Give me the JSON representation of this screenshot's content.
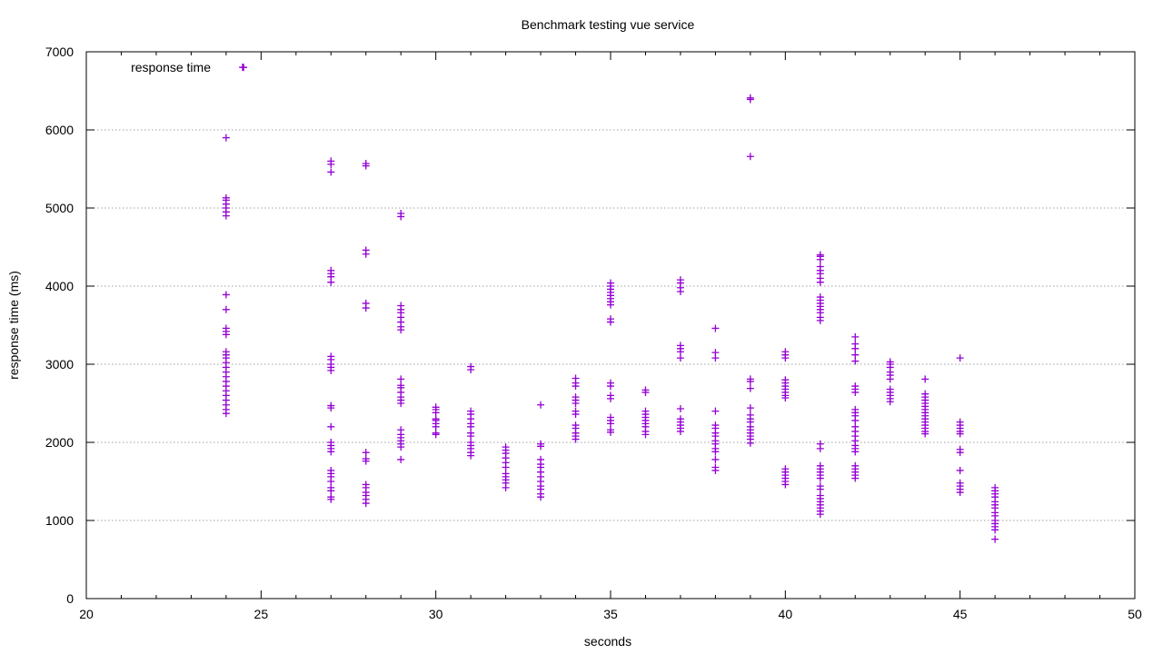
{
  "chart_data": {
    "type": "scatter",
    "title": "Benchmark testing vue service",
    "xlabel": "seconds",
    "ylabel": "response time (ms)",
    "xlim": [
      20,
      50
    ],
    "ylim": [
      0,
      7000
    ],
    "x_ticks": [
      20,
      25,
      30,
      35,
      40,
      45,
      50
    ],
    "y_ticks": [
      0,
      1000,
      2000,
      3000,
      4000,
      5000,
      6000,
      7000
    ],
    "grid": true,
    "legend_position": "top-left",
    "marker": "plus",
    "series": [
      {
        "name": "response time",
        "color": "#9400d3",
        "clusters": [
          {
            "x": 24,
            "y": [
              2370,
              2420,
              2480,
              2540,
              2600,
              2660,
              2720,
              2780,
              2840,
              2900,
              2960,
              3020,
              3080,
              3120,
              3160,
              3380,
              3420,
              3460,
              3700,
              3890,
              4900,
              4950,
              5000,
              5050,
              5100,
              5130,
              5900
            ]
          },
          {
            "x": 27,
            "y": [
              1270,
              1300,
              1380,
              1420,
              1500,
              1560,
              1600,
              1640,
              1880,
              1920,
              1960,
              2000,
              2200,
              2440,
              2470,
              2920,
              2960,
              3000,
              3060,
              3100,
              4050,
              4120,
              4160,
              4200,
              5460,
              5560,
              5600
            ]
          },
          {
            "x": 28,
            "y": [
              1220,
              1270,
              1320,
              1360,
              1420,
              1460,
              1760,
              1790,
              1870,
              3720,
              3780,
              4410,
              4460,
              5540,
              5570
            ]
          },
          {
            "x": 29,
            "y": [
              1780,
              1940,
              1980,
              2020,
              2060,
              2100,
              2160,
              2500,
              2540,
              2580,
              2640,
              2700,
              2730,
              2810,
              3440,
              3480,
              3540,
              3600,
              3660,
              3700,
              3750,
              4890,
              4930
            ]
          },
          {
            "x": 30,
            "y": [
              2100,
              2120,
              2200,
              2240,
              2280,
              2300,
              2380,
              2420,
              2450
            ]
          },
          {
            "x": 31,
            "y": [
              1830,
              1870,
              1920,
              1960,
              2000,
              2080,
              2120,
              2200,
              2240,
              2300,
              2360,
              2400,
              2930,
              2970
            ]
          },
          {
            "x": 32,
            "y": [
              1420,
              1480,
              1520,
              1560,
              1600,
              1680,
              1740,
              1800,
              1860,
              1900,
              1940
            ]
          },
          {
            "x": 33,
            "y": [
              1300,
              1340,
              1400,
              1440,
              1500,
              1560,
              1620,
              1680,
              1720,
              1780,
              1950,
              1980,
              2480
            ]
          },
          {
            "x": 34,
            "y": [
              2040,
              2080,
              2120,
              2180,
              2220,
              2360,
              2400,
              2500,
              2540,
              2580,
              2720,
              2760,
              2820
            ]
          },
          {
            "x": 35,
            "y": [
              2130,
              2160,
              2240,
              2280,
              2320,
              2560,
              2600,
              2720,
              2760,
              3540,
              3580,
              3760,
              3800,
              3840,
              3880,
              3920,
              3960,
              4000,
              4040
            ]
          },
          {
            "x": 36,
            "y": [
              2100,
              2140,
              2200,
              2240,
              2280,
              2320,
              2360,
              2400,
              2640,
              2670
            ]
          },
          {
            "x": 37,
            "y": [
              2140,
              2180,
              2220,
              2260,
              2300,
              2430,
              3080,
              3160,
              3200,
              3240,
              3930,
              3980,
              4040,
              4080
            ]
          },
          {
            "x": 38,
            "y": [
              1640,
              1680,
              1780,
              1880,
              1920,
              1980,
              2020,
              2080,
              2120,
              2180,
              2220,
              2400,
              3080,
              3150,
              3460
            ]
          },
          {
            "x": 39,
            "y": [
              1990,
              2040,
              2080,
              2120,
              2160,
              2200,
              2260,
              2300,
              2350,
              2440,
              2690,
              2780,
              2810,
              5660,
              6390,
              6410
            ]
          },
          {
            "x": 40,
            "y": [
              1460,
              1500,
              1540,
              1580,
              1620,
              1660,
              2570,
              2600,
              2640,
              2680,
              2720,
              2760,
              2800,
              3080,
              3120,
              3160
            ]
          },
          {
            "x": 41,
            "y": [
              1080,
              1120,
              1160,
              1200,
              1240,
              1280,
              1320,
              1400,
              1440,
              1540,
              1580,
              1620,
              1660,
              1700,
              1920,
              1980,
              3560,
              3600,
              3660,
              3700,
              3740,
              3780,
              3820,
              3860,
              4050,
              4100,
              4160,
              4200,
              4250,
              4340,
              4380,
              4400
            ]
          },
          {
            "x": 42,
            "y": [
              1540,
              1580,
              1620,
              1660,
              1700,
              1880,
              1920,
              1960,
              2020,
              2080,
              2140,
              2200,
              2280,
              2340,
              2380,
              2420,
              2640,
              2680,
              2720,
              3040,
              3120,
              3200,
              3260,
              3350
            ]
          },
          {
            "x": 43,
            "y": [
              2520,
              2560,
              2600,
              2640,
              2680,
              2810,
              2860,
              2900,
              2960,
              3000,
              3030
            ]
          },
          {
            "x": 44,
            "y": [
              2110,
              2140,
              2180,
              2220,
              2260,
              2300,
              2340,
              2380,
              2420,
              2460,
              2500,
              2540,
              2580,
              2620,
              2810
            ]
          },
          {
            "x": 45,
            "y": [
              1360,
              1400,
              1440,
              1480,
              1640,
              1870,
              1910,
              2110,
              2140,
              2180,
              2220,
              2260,
              3080
            ]
          },
          {
            "x": 46,
            "y": [
              760,
              880,
              920,
              960,
              1000,
              1060,
              1100,
              1160,
              1200,
              1240,
              1300,
              1340,
              1380,
              1420
            ]
          },
          {
            "x": 24.5,
            "y": [
              6800
            ]
          }
        ]
      }
    ]
  }
}
